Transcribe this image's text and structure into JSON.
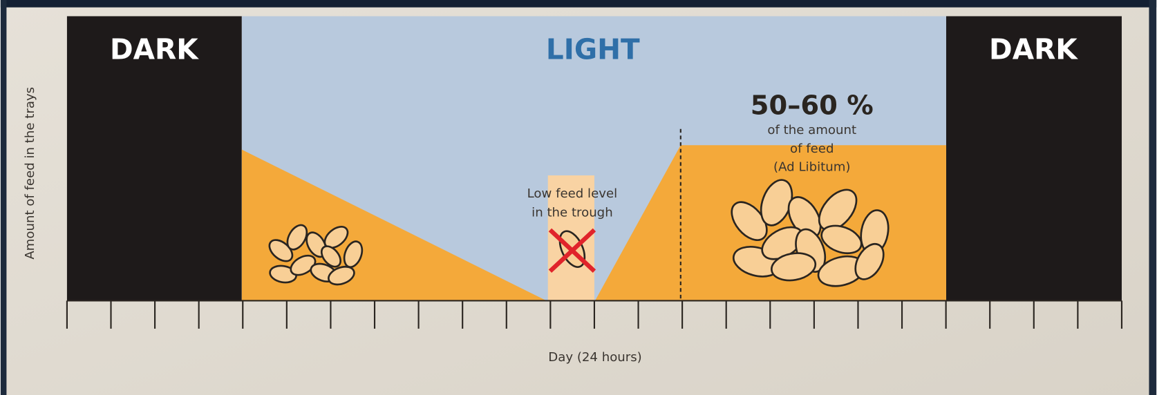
{
  "zones": {
    "dark_left": "DARK",
    "light": "LIGHT",
    "dark_right": "DARK"
  },
  "axes": {
    "y_label": "Amount of feed in the trays",
    "x_label": "Day (24 hours)"
  },
  "low_feed_note": [
    "Low feed level",
    "in the trough"
  ],
  "ad_libitum": {
    "percent": "50–60 %",
    "note": [
      "of the amount",
      "of feed",
      "(Ad Libitum)"
    ]
  }
}
